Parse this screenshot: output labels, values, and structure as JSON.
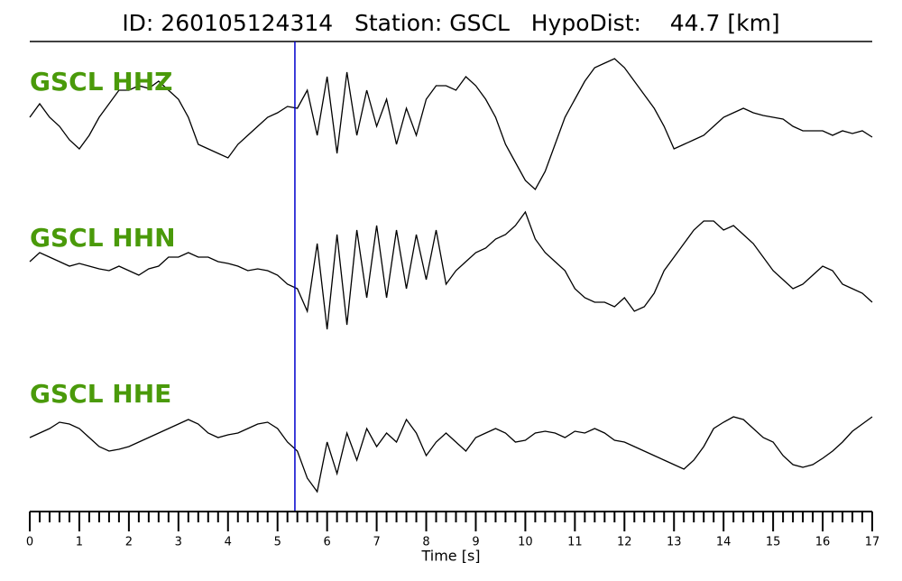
{
  "chart_data": {
    "type": "waveform",
    "title": "ID: 260105124314   Station: GSCL   HypoDist:    44.7 [km]",
    "xlabel": "Time [s]",
    "xlim": [
      0,
      17
    ],
    "xticks": [
      0,
      1,
      2,
      3,
      4,
      5,
      6,
      7,
      8,
      9,
      10,
      11,
      12,
      13,
      14,
      15,
      16,
      17
    ],
    "xminorticks": [
      0.2,
      0.4,
      0.6,
      0.8,
      1.2,
      1.4,
      1.6,
      1.8,
      2.2,
      2.4,
      2.6,
      2.8,
      3.2,
      3.4,
      3.6,
      3.8,
      4.2,
      4.4,
      4.6,
      4.8,
      5.2,
      5.4,
      5.6,
      5.8,
      6.2,
      6.4,
      6.6,
      6.8,
      7.2,
      7.4,
      7.6,
      7.8,
      8.2,
      8.4,
      8.6,
      8.8,
      9.2,
      9.4,
      9.6,
      9.8,
      10.2,
      10.4,
      10.6,
      10.8,
      11.2,
      11.4,
      11.6,
      11.8,
      12.2,
      12.4,
      12.6,
      12.8,
      13.2,
      13.4,
      13.6,
      13.8,
      14.2,
      14.4,
      14.6,
      14.8,
      15.2,
      15.4,
      15.6,
      15.8,
      16.2,
      16.4,
      16.6,
      16.8
    ],
    "pick_time": 5.35,
    "pick_color": "#0000cc",
    "label_color": "#4a9a0a",
    "x": [
      0,
      0.2,
      0.4,
      0.6,
      0.8,
      1,
      1.2,
      1.4,
      1.6,
      1.8,
      2,
      2.2,
      2.4,
      2.6,
      2.8,
      3,
      3.2,
      3.4,
      3.6,
      3.8,
      4,
      4.2,
      4.4,
      4.6,
      4.8,
      5,
      5.2,
      5.4,
      5.6,
      5.8,
      6,
      6.2,
      6.4,
      6.6,
      6.8,
      7,
      7.2,
      7.4,
      7.6,
      7.8,
      8,
      8.2,
      8.4,
      8.6,
      8.8,
      9,
      9.2,
      9.4,
      9.6,
      9.8,
      10,
      10.2,
      10.4,
      10.6,
      10.8,
      11,
      11.2,
      11.4,
      11.6,
      11.8,
      12,
      12.2,
      12.4,
      12.6,
      12.8,
      13,
      13.2,
      13.4,
      13.6,
      13.8,
      14,
      14.2,
      14.4,
      14.6,
      14.8,
      15,
      15.2,
      15.4,
      15.6,
      15.8,
      16,
      16.2,
      16.4,
      16.6,
      16.8,
      17
    ],
    "series": [
      {
        "name": "GSCL HHZ",
        "color": "#000000",
        "values": [
          0,
          15,
          0,
          -10,
          -25,
          -35,
          -20,
          0,
          15,
          30,
          30,
          35,
          32,
          40,
          30,
          20,
          0,
          -30,
          -35,
          -40,
          -45,
          -30,
          -20,
          -10,
          0,
          5,
          12,
          10,
          30,
          -20,
          45,
          -40,
          50,
          -20,
          30,
          -10,
          20,
          -30,
          10,
          -20,
          20,
          35,
          35,
          30,
          45,
          35,
          20,
          0,
          -30,
          -50,
          -70,
          -80,
          -60,
          -30,
          0,
          20,
          40,
          55,
          60,
          65,
          55,
          40,
          25,
          10,
          -10,
          -35,
          -30,
          -25,
          -20,
          -10,
          0,
          5,
          10,
          5,
          2,
          0,
          -2,
          -10,
          -15,
          -15,
          -15,
          -20,
          -15,
          -18,
          -15,
          -22
        ]
      },
      {
        "name": "GSCL HHN",
        "color": "#000000",
        "values": [
          10,
          20,
          15,
          10,
          5,
          8,
          5,
          2,
          0,
          5,
          0,
          -5,
          2,
          5,
          15,
          15,
          20,
          15,
          15,
          10,
          8,
          5,
          0,
          2,
          0,
          -5,
          -15,
          -20,
          -45,
          30,
          -65,
          40,
          -60,
          45,
          -30,
          50,
          -30,
          45,
          -20,
          40,
          -10,
          45,
          -15,
          0,
          10,
          20,
          25,
          35,
          40,
          50,
          65,
          35,
          20,
          10,
          0,
          -20,
          -30,
          -35,
          -35,
          -40,
          -30,
          -45,
          -40,
          -25,
          0,
          15,
          30,
          45,
          55,
          55,
          45,
          50,
          40,
          30,
          15,
          0,
          -10,
          -20,
          -15,
          -5,
          5,
          0,
          -15,
          -20,
          -25,
          -35
        ]
      },
      {
        "name": "GSCL HHE",
        "color": "#000000",
        "values": [
          5,
          10,
          15,
          22,
          20,
          15,
          5,
          -5,
          -10,
          -8,
          -5,
          0,
          5,
          10,
          15,
          20,
          25,
          20,
          10,
          5,
          8,
          10,
          15,
          20,
          22,
          15,
          0,
          -10,
          -40,
          -55,
          0,
          -35,
          10,
          -20,
          15,
          -5,
          10,
          0,
          25,
          10,
          -15,
          0,
          10,
          0,
          -10,
          5,
          10,
          15,
          10,
          0,
          2,
          10,
          12,
          10,
          5,
          12,
          10,
          15,
          10,
          2,
          0,
          -5,
          -10,
          -15,
          -20,
          -25,
          -30,
          -20,
          -5,
          15,
          22,
          28,
          25,
          15,
          5,
          0,
          -15,
          -25,
          -28,
          -25,
          -18,
          -10,
          0,
          12,
          20,
          28
        ]
      }
    ]
  }
}
